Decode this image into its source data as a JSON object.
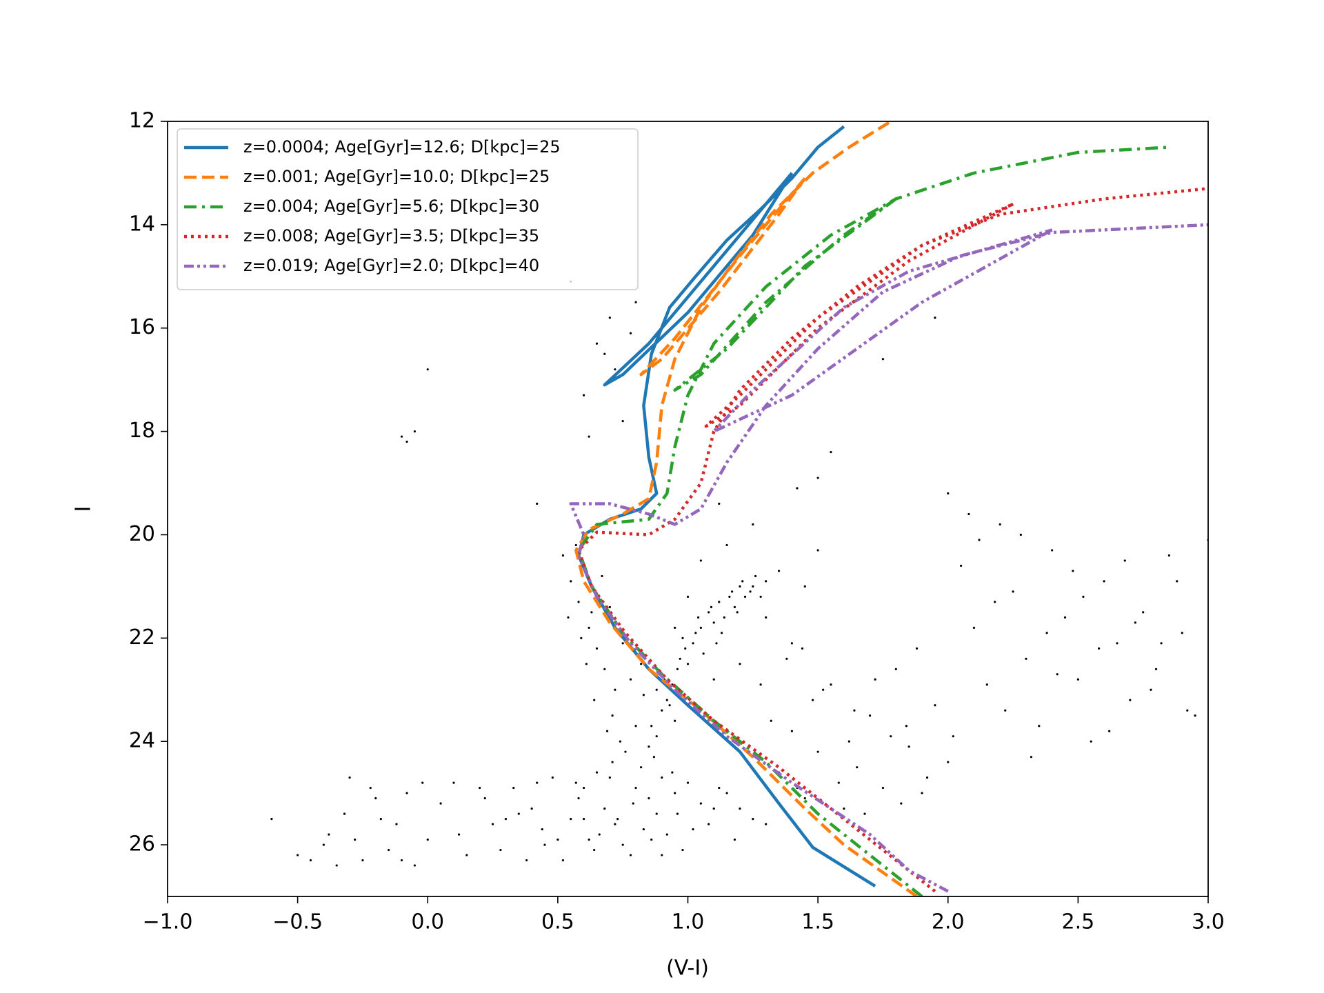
{
  "chart_data": {
    "type": "line",
    "xlabel": "(V-I)",
    "ylabel": "I",
    "xlim": [
      -1.0,
      3.0
    ],
    "ylim": [
      27,
      12
    ],
    "xticks": [
      {
        "value": -1.0,
        "label": "−1.0"
      },
      {
        "value": -0.5,
        "label": "−0.5"
      },
      {
        "value": 0.0,
        "label": "0.0"
      },
      {
        "value": 0.5,
        "label": "0.5"
      },
      {
        "value": 1.0,
        "label": "1.0"
      },
      {
        "value": 1.5,
        "label": "1.5"
      },
      {
        "value": 2.0,
        "label": "2.0"
      },
      {
        "value": 2.5,
        "label": "2.5"
      },
      {
        "value": 3.0,
        "label": "3.0"
      }
    ],
    "yticks": [
      12,
      14,
      16,
      18,
      20,
      22,
      24,
      26
    ],
    "legend": "upper left",
    "scatter": {
      "type": "scatter",
      "color": "#000000",
      "x": [
        0.05,
        0.12,
        0.2,
        0.28,
        0.35,
        0.42,
        0.5,
        0.58,
        0.65,
        0.72,
        0.8,
        0.88,
        0.95,
        1.02,
        1.1,
        1.18,
        1.25,
        0.15,
        0.25,
        0.33,
        0.45,
        0.55,
        0.62,
        0.7,
        0.78,
        0.85,
        0.92,
        1.0,
        1.08,
        0.4,
        0.48,
        0.6,
        0.68,
        0.75,
        0.82,
        0.9,
        0.98,
        1.05,
        1.15,
        0.3,
        0.52,
        0.64,
        0.73,
        0.86,
        0.96,
        0.22,
        0.38,
        0.57,
        0.66,
        0.79,
        0.94,
        1.12,
        1.3,
        0.1,
        0.44,
        0.71,
        0.83,
        1.2,
        0.6,
        0.9,
        -0.6,
        -0.5,
        -0.45,
        -0.4,
        -0.32,
        -0.28,
        -0.25,
        -0.2,
        -0.15,
        -0.12,
        -0.08,
        -0.05,
        0.0,
        -0.3,
        -0.22,
        -0.35,
        -0.18,
        -0.02,
        -0.1,
        -0.38,
        0.85,
        0.86,
        0.88,
        0.9,
        0.92,
        0.88,
        0.91,
        0.94,
        0.96,
        0.93,
        0.97,
        0.99,
        1.0,
        1.02,
        0.98,
        1.03,
        1.05,
        1.06,
        1.04,
        1.08,
        1.1,
        1.09,
        1.12,
        1.14,
        1.13,
        1.16,
        1.18,
        1.17,
        1.2,
        1.22,
        1.21,
        1.24,
        1.26,
        1.25,
        1.28,
        1.3,
        1.19,
        1.11,
        0.95,
        0.87,
        0.52,
        0.55,
        0.58,
        0.6,
        0.62,
        0.65,
        0.68,
        0.7,
        0.72,
        0.75,
        0.54,
        0.57,
        0.61,
        0.64,
        0.67,
        0.71,
        0.74,
        0.78,
        0.8,
        0.83,
        0.59,
        0.63,
        0.69,
        0.76,
        0.82,
        1.35,
        1.4,
        1.45,
        1.5,
        1.55,
        1.6,
        1.65,
        1.7,
        1.75,
        1.8,
        1.85,
        1.9,
        1.95,
        2.0,
        1.38,
        1.48,
        1.58,
        1.68,
        1.78,
        1.88,
        1.32,
        1.42,
        1.52,
        1.62,
        1.72,
        1.82,
        1.92,
        1.44,
        1.64,
        1.84,
        2.0,
        2.05,
        2.1,
        2.15,
        2.2,
        2.25,
        2.3,
        2.35,
        2.4,
        2.45,
        2.5,
        2.55,
        2.6,
        2.65,
        2.7,
        2.75,
        2.8,
        2.85,
        2.9,
        2.95,
        2.02,
        2.08,
        2.12,
        2.18,
        2.22,
        2.28,
        2.32,
        2.38,
        2.42,
        2.48,
        2.52,
        2.58,
        2.62,
        2.68,
        2.72,
        2.78,
        2.82,
        2.88,
        2.92,
        3.0,
        0.65,
        0.7,
        0.72,
        0.78,
        0.6,
        0.55,
        0.8,
        0.75,
        0.68,
        0.62,
        -0.1,
        -0.08,
        -0.05,
        0.0,
        0.42,
        1.3,
        1.55,
        1.75,
        1.95,
        1.5,
        1.0,
        1.05,
        1.1,
        1.15,
        1.2,
        1.25,
        1.3,
        1.35,
        1.4,
        1.45,
        1.5,
        0.95,
        1.12,
        1.28,
        1.42
      ],
      "y": [
        25.2,
        25.8,
        24.9,
        26.1,
        25.4,
        24.8,
        25.9,
        25.1,
        24.6,
        25.6,
        24.9,
        25.4,
        25.0,
        25.7,
        25.3,
        25.9,
        25.5,
        26.2,
        25.6,
        24.9,
        26.0,
        25.5,
        25.9,
        24.7,
        26.2,
        25.1,
        25.8,
        24.8,
        25.6,
        25.3,
        24.7,
        24.9,
        25.3,
        26.0,
        24.5,
        24.7,
        26.1,
        25.2,
        25.0,
        25.5,
        26.3,
        26.1,
        25.5,
        25.9,
        25.4,
        25.1,
        26.3,
        24.8,
        25.8,
        25.2,
        24.6,
        24.9,
        25.6,
        24.8,
        25.7,
        24.4,
        25.7,
        25.3,
        25.5,
        26.2,
        25.5,
        26.2,
        26.3,
        26.0,
        25.4,
        25.9,
        26.3,
        25.1,
        26.1,
        25.6,
        25.0,
        26.4,
        25.9,
        24.7,
        24.9,
        26.4,
        25.5,
        24.8,
        26.3,
        25.8,
        24.1,
        23.7,
        23.9,
        23.4,
        23.2,
        23.0,
        22.8,
        22.9,
        22.6,
        23.3,
        22.4,
        22.2,
        22.5,
        22.1,
        22.0,
        21.9,
        21.8,
        22.3,
        21.6,
        21.5,
        21.7,
        21.4,
        21.3,
        21.6,
        21.9,
        21.2,
        21.4,
        21.1,
        21.0,
        21.2,
        20.9,
        21.1,
        20.8,
        21.0,
        21.2,
        20.9,
        21.5,
        22.1,
        23.6,
        24.3,
        20.4,
        20.9,
        21.3,
        20.6,
        21.8,
        22.2,
        22.6,
        21.4,
        23.0,
        22.1,
        21.6,
        20.2,
        22.5,
        23.2,
        20.8,
        23.5,
        24.0,
        22.8,
        23.7,
        23.1,
        22.0,
        21.5,
        23.8,
        24.2,
        22.5,
        24.6,
        23.8,
        25.1,
        24.2,
        22.9,
        25.3,
        24.5,
        23.5,
        24.9,
        22.6,
        24.1,
        25.0,
        23.3,
        24.4,
        22.4,
        23.2,
        24.8,
        25.4,
        23.9,
        22.2,
        23.6,
        24.9,
        23.0,
        24.0,
        22.8,
        25.2,
        24.7,
        22.2,
        23.4,
        23.7,
        19.2,
        20.6,
        21.8,
        22.9,
        19.8,
        21.1,
        22.4,
        23.7,
        20.3,
        21.6,
        22.8,
        24.0,
        20.9,
        22.1,
        23.2,
        21.5,
        22.6,
        20.4,
        21.9,
        23.5,
        23.9,
        19.6,
        20.1,
        21.3,
        23.4,
        20.0,
        24.3,
        21.9,
        22.7,
        20.7,
        21.2,
        22.2,
        23.8,
        20.5,
        21.7,
        23.0,
        22.1,
        20.9,
        23.4,
        20.1,
        16.3,
        15.8,
        16.8,
        16.1,
        17.3,
        15.1,
        15.5,
        17.8,
        16.5,
        18.1,
        18.1,
        18.2,
        18.0,
        16.8,
        19.4,
        17.0,
        18.4,
        16.6,
        15.8,
        18.9,
        21.2,
        20.5,
        22.8,
        20.2,
        22.5,
        19.8,
        21.6,
        20.7,
        22.1,
        21.0,
        20.3,
        21.8,
        19.4,
        22.9,
        19.1
      ]
    },
    "series": [
      {
        "name": "z=0.0004; Age[Gyr]=12.6; D[kpc]=25",
        "color": "#1f77b4",
        "linestyle": "solid",
        "x": [
          1.72,
          1.48,
          1.35,
          1.2,
          1.0,
          0.85,
          0.72,
          0.63,
          0.58,
          0.6,
          0.7,
          0.82,
          0.88,
          0.85,
          0.83,
          0.86,
          0.93,
          1.03,
          1.15,
          1.28,
          1.4,
          1.5,
          1.6,
          null,
          1.4,
          1.1,
          0.85,
          0.68,
          0.75,
          1.0,
          1.25,
          1.4
        ],
        "y": [
          26.8,
          26.05,
          25.2,
          24.2,
          23.3,
          22.6,
          21.8,
          21.0,
          20.4,
          20.0,
          19.7,
          19.5,
          19.2,
          18.5,
          17.5,
          16.5,
          15.6,
          15.0,
          14.3,
          13.7,
          13.1,
          12.5,
          12.1,
          null,
          13.0,
          14.8,
          16.3,
          17.1,
          16.9,
          15.7,
          14.2,
          13.0
        ]
      },
      {
        "name": "z=0.001; Age[Gyr]=10.0; D[kpc]=25",
        "color": "#ff7f0e",
        "linestyle": "dashed",
        "x": [
          1.88,
          1.6,
          1.45,
          1.25,
          1.05,
          0.85,
          0.7,
          0.6,
          0.57,
          0.62,
          0.75,
          0.85,
          0.88,
          0.9,
          0.95,
          1.05,
          1.18,
          1.32,
          1.48,
          1.62,
          1.78,
          null,
          1.45,
          1.2,
          0.95,
          0.82,
          0.9,
          1.12,
          1.35,
          1.45
        ],
        "y": [
          27.0,
          26.0,
          25.3,
          24.3,
          23.4,
          22.6,
          21.7,
          20.9,
          20.3,
          19.9,
          19.6,
          19.3,
          18.6,
          17.5,
          16.6,
          15.6,
          14.7,
          13.8,
          13.0,
          12.5,
          12.0,
          null,
          13.1,
          14.6,
          16.2,
          16.9,
          16.6,
          15.3,
          13.8,
          13.1
        ]
      },
      {
        "name": "z=0.004; Age[Gyr]=5.6; D[kpc]=30",
        "color": "#2ca02c",
        "linestyle": "dashdot",
        "x": [
          1.9,
          1.65,
          1.5,
          1.3,
          1.1,
          0.9,
          0.75,
          0.63,
          0.58,
          0.65,
          0.85,
          0.92,
          0.95,
          1.0,
          1.1,
          1.3,
          1.55,
          1.8,
          2.1,
          2.5,
          2.85,
          null,
          1.8,
          1.45,
          1.15,
          0.95,
          1.05,
          1.3,
          1.6,
          1.8
        ],
        "y": [
          27.0,
          26.0,
          25.4,
          24.4,
          23.6,
          22.7,
          21.9,
          21.0,
          20.3,
          19.8,
          19.7,
          19.2,
          18.3,
          17.3,
          16.3,
          15.2,
          14.2,
          13.5,
          13.0,
          12.6,
          12.5,
          null,
          13.5,
          14.8,
          16.4,
          17.2,
          16.9,
          15.5,
          14.2,
          13.5
        ]
      },
      {
        "name": "z=0.008; Age[Gyr]=3.5; D[kpc]=35",
        "color": "#d62728",
        "linestyle": "dotted",
        "x": [
          1.95,
          1.8,
          1.6,
          1.35,
          1.1,
          0.92,
          0.76,
          0.63,
          0.58,
          0.65,
          0.85,
          0.95,
          1.05,
          1.1,
          1.2,
          1.4,
          1.65,
          1.9,
          2.2,
          2.6,
          3.0,
          null,
          2.25,
          1.85,
          1.5,
          1.2,
          1.07,
          1.2,
          1.5,
          1.9,
          2.25
        ],
        "y": [
          26.9,
          26.3,
          25.5,
          24.5,
          23.6,
          22.8,
          21.9,
          21.0,
          20.3,
          19.95,
          20.0,
          19.7,
          19.0,
          18.0,
          17.2,
          16.2,
          15.2,
          14.4,
          13.8,
          13.5,
          13.3,
          null,
          13.6,
          14.7,
          16.0,
          17.5,
          17.9,
          17.3,
          15.8,
          14.4,
          13.6
        ]
      },
      {
        "name": "z=0.019; Age[Gyr]=2.0; D[kpc]=40",
        "color": "#9467bd",
        "linestyle": "dashdotdot",
        "x": [
          2.0,
          1.85,
          1.7,
          1.4,
          1.15,
          0.95,
          0.78,
          0.65,
          0.58,
          0.6,
          0.55,
          0.7,
          0.85,
          0.95,
          1.05,
          1.15,
          1.3,
          1.5,
          1.75,
          2.05,
          2.4,
          3.0,
          null,
          2.4,
          1.9,
          1.4,
          1.1,
          1.25,
          1.6,
          1.85,
          2.4
        ],
        "y": [
          26.9,
          26.5,
          25.8,
          24.8,
          23.9,
          23.0,
          22.1,
          21.2,
          20.4,
          20.0,
          19.4,
          19.4,
          19.6,
          19.8,
          19.5,
          18.6,
          17.5,
          16.4,
          15.3,
          14.6,
          14.15,
          14.0,
          null,
          14.1,
          15.5,
          17.3,
          18.0,
          17.2,
          15.6,
          14.9,
          14.1
        ]
      }
    ]
  }
}
